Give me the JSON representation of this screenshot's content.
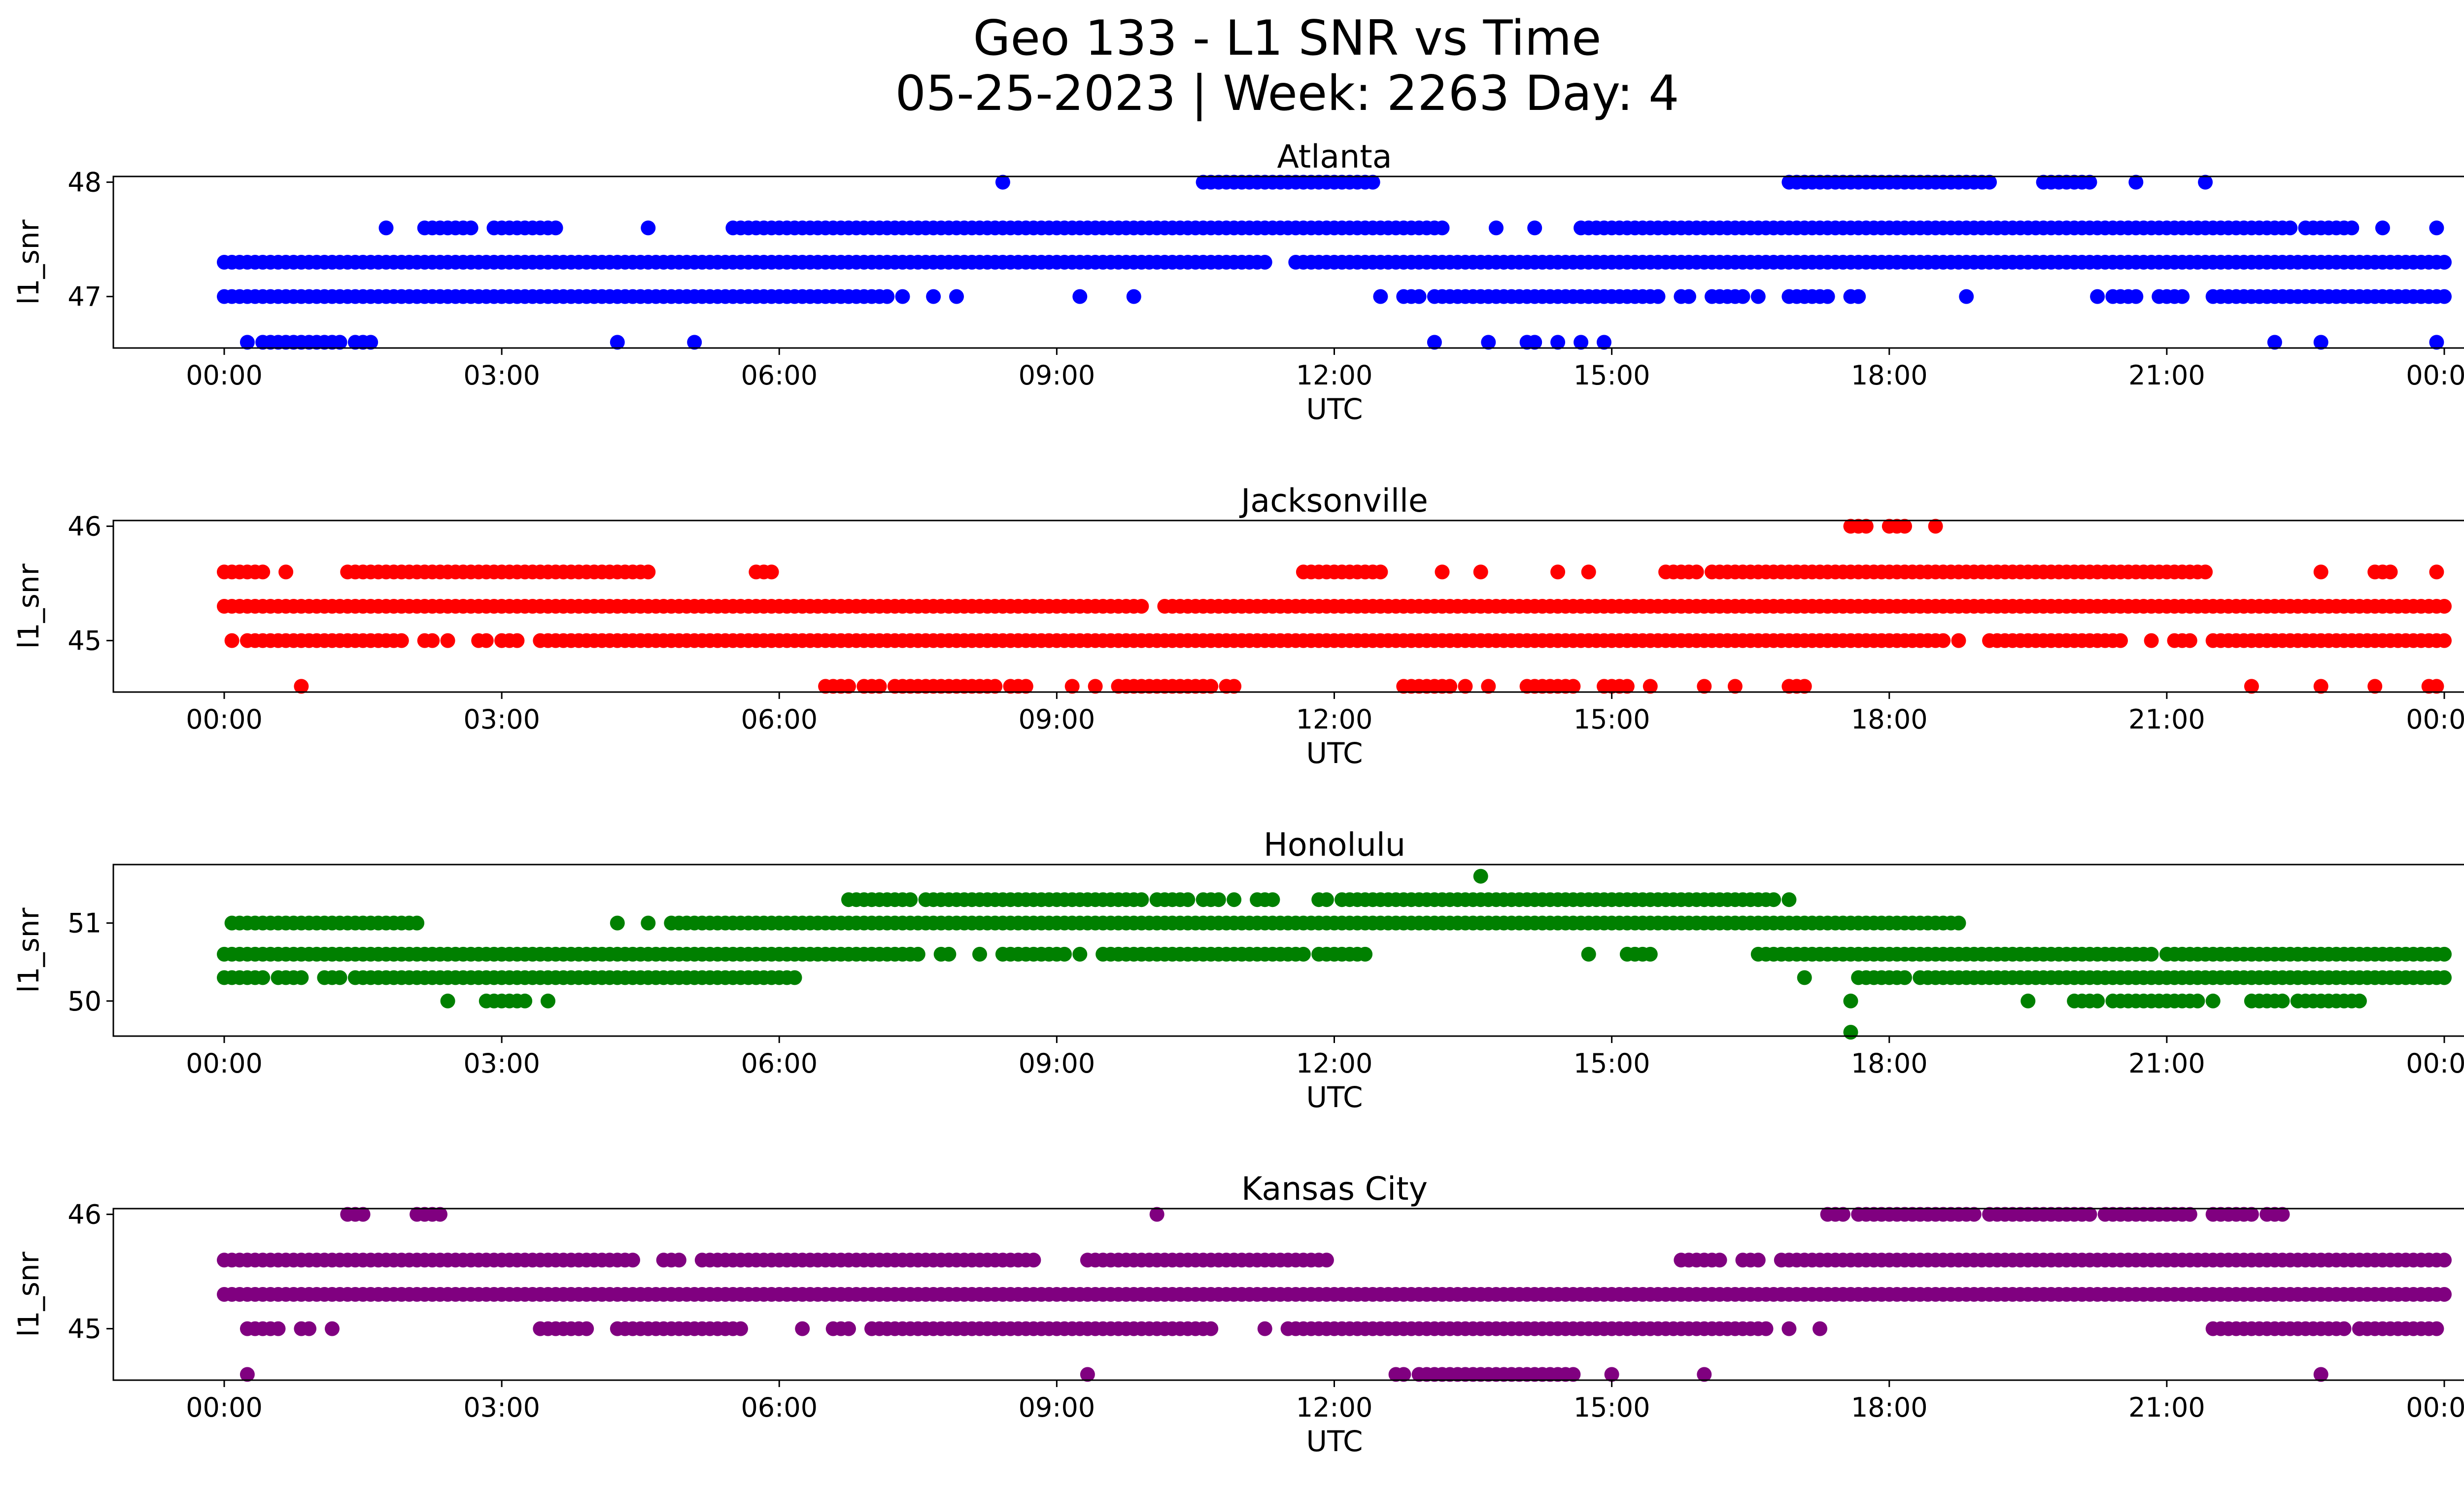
{
  "suptitle": [
    "Geo 133 - L1 SNR vs Time",
    "05-25-2023 | Week: 2263 Day: 4"
  ],
  "chart_data": [
    {
      "type": "scatter",
      "title": "Atlanta",
      "xlabel": "UTC",
      "ylabel": "l1_snr",
      "color": "#0000ff",
      "xlim": [
        "00:00",
        "00:00"
      ],
      "xticks": [
        "00:00",
        "03:00",
        "06:00",
        "09:00",
        "12:00",
        "15:00",
        "18:00",
        "21:00",
        "00:00"
      ],
      "ylim": [
        46.55,
        48.05
      ],
      "yticks": [
        47,
        48
      ],
      "levels": [
        {
          "y": 48.0,
          "runs": [
            [
              "08:25",
              "08:25"
            ],
            [
              "10:35",
              "12:25"
            ],
            [
              "16:55",
              "19:05"
            ],
            [
              "19:40",
              "20:10"
            ],
            [
              "20:40",
              "20:40"
            ],
            [
              "21:25",
              "21:25"
            ]
          ]
        },
        {
          "y": 47.6,
          "runs": [
            [
              "01:45",
              "01:45"
            ],
            [
              "02:10",
              "02:40"
            ],
            [
              "02:55",
              "03:35"
            ],
            [
              "04:35",
              "04:35"
            ],
            [
              "05:30",
              "12:55"
            ],
            [
              "13:00",
              "13:10"
            ],
            [
              "13:45",
              "13:45"
            ],
            [
              "14:10",
              "14:10"
            ],
            [
              "14:40",
              "22:20"
            ],
            [
              "22:30",
              "23:00"
            ],
            [
              "23:20",
              "23:20"
            ],
            [
              "23:55",
              "23:55"
            ]
          ]
        },
        {
          "y": 47.3,
          "runs": [
            [
              "00:00",
              "11:15"
            ],
            [
              "11:35",
              "24:00"
            ]
          ]
        },
        {
          "y": 47.0,
          "runs": [
            [
              "00:00",
              "07:10"
            ],
            [
              "07:20",
              "07:20"
            ],
            [
              "07:40",
              "07:40"
            ],
            [
              "07:55",
              "07:55"
            ],
            [
              "09:15",
              "09:15"
            ],
            [
              "09:50",
              "09:50"
            ],
            [
              "12:30",
              "12:30"
            ],
            [
              "12:45",
              "12:55"
            ],
            [
              "13:05",
              "15:30"
            ],
            [
              "15:45",
              "15:50"
            ],
            [
              "16:05",
              "16:25"
            ],
            [
              "16:35",
              "16:35"
            ],
            [
              "16:55",
              "17:20"
            ],
            [
              "17:35",
              "17:40"
            ],
            [
              "18:50",
              "18:50"
            ],
            [
              "20:15",
              "20:15"
            ],
            [
              "20:25",
              "20:40"
            ],
            [
              "20:55",
              "21:10"
            ],
            [
              "21:30",
              "24:00"
            ]
          ]
        },
        {
          "y": 46.6,
          "runs": [
            [
              "00:15",
              "00:15"
            ],
            [
              "00:25",
              "01:15"
            ],
            [
              "01:25",
              "01:35"
            ],
            [
              "04:15",
              "04:15"
            ],
            [
              "05:05",
              "05:05"
            ],
            [
              "13:05",
              "13:05"
            ],
            [
              "13:40",
              "13:40"
            ],
            [
              "14:05",
              "14:10"
            ],
            [
              "14:25",
              "14:25"
            ],
            [
              "14:40",
              "14:40"
            ],
            [
              "14:55",
              "14:55"
            ],
            [
              "22:10",
              "22:10"
            ],
            [
              "22:40",
              "22:40"
            ],
            [
              "23:55",
              "23:55"
            ]
          ]
        }
      ]
    },
    {
      "type": "scatter",
      "title": "Jacksonville",
      "xlabel": "UTC",
      "ylabel": "l1_snr",
      "color": "#ff0000",
      "xlim": [
        "00:00",
        "00:00"
      ],
      "xticks": [
        "00:00",
        "03:00",
        "06:00",
        "09:00",
        "12:00",
        "15:00",
        "18:00",
        "21:00",
        "00:00"
      ],
      "ylim": [
        44.55,
        46.05
      ],
      "yticks": [
        45,
        46
      ],
      "levels": [
        {
          "y": 46.0,
          "runs": [
            [
              "17:35",
              "17:45"
            ],
            [
              "18:00",
              "18:10"
            ],
            [
              "18:30",
              "18:30"
            ]
          ]
        },
        {
          "y": 45.6,
          "runs": [
            [
              "00:00",
              "00:25"
            ],
            [
              "00:40",
              "00:40"
            ],
            [
              "01:20",
              "04:35"
            ],
            [
              "05:45",
              "05:55"
            ],
            [
              "11:40",
              "12:30"
            ],
            [
              "13:10",
              "13:10"
            ],
            [
              "13:35",
              "13:35"
            ],
            [
              "14:25",
              "14:25"
            ],
            [
              "14:45",
              "14:45"
            ],
            [
              "15:35",
              "15:55"
            ],
            [
              "16:05",
              "21:25"
            ],
            [
              "22:40",
              "22:40"
            ],
            [
              "23:15",
              "23:25"
            ],
            [
              "23:55",
              "23:55"
            ]
          ]
        },
        {
          "y": 45.3,
          "runs": [
            [
              "00:00",
              "09:55"
            ],
            [
              "10:10",
              "24:00"
            ]
          ]
        },
        {
          "y": 45.0,
          "runs": [
            [
              "00:05",
              "00:05"
            ],
            [
              "00:15",
              "01:55"
            ],
            [
              "02:10",
              "02:15"
            ],
            [
              "02:25",
              "02:25"
            ],
            [
              "02:45",
              "02:50"
            ],
            [
              "03:00",
              "03:10"
            ],
            [
              "03:25",
              "18:35"
            ],
            [
              "18:45",
              "18:45"
            ],
            [
              "19:05",
              "20:30"
            ],
            [
              "20:50",
              "20:50"
            ],
            [
              "21:05",
              "21:15"
            ],
            [
              "21:30",
              "24:00"
            ]
          ]
        },
        {
          "y": 44.6,
          "runs": [
            [
              "00:50",
              "00:50"
            ],
            [
              "06:30",
              "06:45"
            ],
            [
              "06:55",
              "07:05"
            ],
            [
              "07:15",
              "08:20"
            ],
            [
              "08:30",
              "08:40"
            ],
            [
              "09:10",
              "09:10"
            ],
            [
              "09:25",
              "09:25"
            ],
            [
              "09:40",
              "10:40"
            ],
            [
              "10:50",
              "10:55"
            ],
            [
              "12:45",
              "13:15"
            ],
            [
              "13:25",
              "13:25"
            ],
            [
              "13:40",
              "13:40"
            ],
            [
              "14:05",
              "14:35"
            ],
            [
              "14:55",
              "15:10"
            ],
            [
              "15:25",
              "15:25"
            ],
            [
              "16:00",
              "16:00"
            ],
            [
              "16:20",
              "16:20"
            ],
            [
              "16:55",
              "17:05"
            ],
            [
              "21:55",
              "21:55"
            ],
            [
              "22:40",
              "22:40"
            ],
            [
              "23:15",
              "23:15"
            ],
            [
              "23:50",
              "23:55"
            ]
          ]
        }
      ]
    },
    {
      "type": "scatter",
      "title": "Honolulu",
      "xlabel": "UTC",
      "ylabel": "l1_snr",
      "color": "#008000",
      "xlim": [
        "00:00",
        "00:00"
      ],
      "xticks": [
        "00:00",
        "03:00",
        "06:00",
        "09:00",
        "12:00",
        "15:00",
        "18:00",
        "21:00",
        "00:00"
      ],
      "ylim": [
        49.55,
        51.75
      ],
      "yticks": [
        50,
        51
      ],
      "levels": [
        {
          "y": 51.6,
          "runs": [
            [
              "13:35",
              "13:35"
            ]
          ]
        },
        {
          "y": 51.3,
          "runs": [
            [
              "06:45",
              "07:25"
            ],
            [
              "07:35",
              "09:55"
            ],
            [
              "10:05",
              "10:25"
            ],
            [
              "10:35",
              "10:45"
            ],
            [
              "10:55",
              "10:55"
            ],
            [
              "11:10",
              "11:20"
            ],
            [
              "11:50",
              "11:55"
            ],
            [
              "12:05",
              "16:45"
            ],
            [
              "16:55",
              "16:55"
            ]
          ]
        },
        {
          "y": 51.0,
          "runs": [
            [
              "00:05",
              "02:05"
            ],
            [
              "04:15",
              "04:15"
            ],
            [
              "04:35",
              "04:35"
            ],
            [
              "04:50",
              "18:45"
            ]
          ]
        },
        {
          "y": 50.6,
          "runs": [
            [
              "00:00",
              "07:30"
            ],
            [
              "07:45",
              "07:50"
            ],
            [
              "08:10",
              "08:10"
            ],
            [
              "08:25",
              "09:05"
            ],
            [
              "09:15",
              "09:15"
            ],
            [
              "09:30",
              "11:40"
            ],
            [
              "11:50",
              "12:20"
            ],
            [
              "14:45",
              "14:45"
            ],
            [
              "15:10",
              "15:25"
            ],
            [
              "16:35",
              "20:50"
            ],
            [
              "21:00",
              "22:30"
            ],
            [
              "22:35",
              "24:00"
            ]
          ]
        },
        {
          "y": 50.3,
          "runs": [
            [
              "00:00",
              "00:25"
            ],
            [
              "00:35",
              "00:50"
            ],
            [
              "01:05",
              "01:15"
            ],
            [
              "01:25",
              "06:10"
            ],
            [
              "17:05",
              "17:05"
            ],
            [
              "17:40",
              "18:10"
            ],
            [
              "18:20",
              "24:00"
            ]
          ]
        },
        {
          "y": 50.0,
          "runs": [
            [
              "02:25",
              "02:25"
            ],
            [
              "02:50",
              "03:15"
            ],
            [
              "03:30",
              "03:30"
            ],
            [
              "17:35",
              "17:35"
            ],
            [
              "19:30",
              "19:30"
            ],
            [
              "20:00",
              "20:15"
            ],
            [
              "20:25",
              "21:20"
            ],
            [
              "21:30",
              "21:30"
            ],
            [
              "21:55",
              "22:15"
            ],
            [
              "22:25",
              "23:05"
            ]
          ]
        },
        {
          "y": 49.6,
          "runs": [
            [
              "17:35",
              "17:35"
            ]
          ]
        }
      ]
    },
    {
      "type": "scatter",
      "title": "Kansas City",
      "xlabel": "UTC",
      "ylabel": "l1_snr",
      "color": "#800080",
      "xlim": [
        "00:00",
        "00:00"
      ],
      "xticks": [
        "00:00",
        "03:00",
        "06:00",
        "09:00",
        "12:00",
        "15:00",
        "18:00",
        "21:00",
        "00:00"
      ],
      "ylim": [
        44.55,
        46.05
      ],
      "yticks": [
        45,
        46
      ],
      "levels": [
        {
          "y": 46.0,
          "runs": [
            [
              "01:20",
              "01:30"
            ],
            [
              "02:05",
              "02:20"
            ],
            [
              "10:05",
              "10:05"
            ],
            [
              "17:20",
              "17:30"
            ],
            [
              "17:40",
              "18:55"
            ],
            [
              "19:05",
              "20:10"
            ],
            [
              "20:20",
              "21:15"
            ],
            [
              "21:30",
              "21:55"
            ],
            [
              "22:05",
              "22:15"
            ]
          ]
        },
        {
          "y": 45.6,
          "runs": [
            [
              "00:00",
              "04:25"
            ],
            [
              "04:45",
              "04:55"
            ],
            [
              "05:10",
              "08:45"
            ],
            [
              "09:20",
              "11:55"
            ],
            [
              "15:45",
              "16:10"
            ],
            [
              "16:25",
              "16:35"
            ],
            [
              "16:50",
              "24:00"
            ]
          ]
        },
        {
          "y": 45.3,
          "runs": [
            [
              "00:00",
              "24:00"
            ]
          ]
        },
        {
          "y": 45.0,
          "runs": [
            [
              "00:15",
              "00:35"
            ],
            [
              "00:50",
              "00:55"
            ],
            [
              "01:10",
              "01:10"
            ],
            [
              "03:25",
              "03:55"
            ],
            [
              "04:15",
              "05:35"
            ],
            [
              "06:15",
              "06:15"
            ],
            [
              "06:35",
              "06:45"
            ],
            [
              "07:00",
              "10:40"
            ],
            [
              "11:15",
              "11:15"
            ],
            [
              "11:30",
              "16:40"
            ],
            [
              "16:55",
              "16:55"
            ],
            [
              "17:15",
              "17:15"
            ],
            [
              "21:30",
              "22:55"
            ],
            [
              "23:05",
              "23:55"
            ]
          ]
        },
        {
          "y": 44.6,
          "runs": [
            [
              "00:15",
              "00:15"
            ],
            [
              "09:20",
              "09:20"
            ],
            [
              "12:40",
              "12:45"
            ],
            [
              "12:55",
              "14:35"
            ],
            [
              "15:00",
              "15:00"
            ],
            [
              "16:00",
              "16:00"
            ],
            [
              "22:40",
              "22:40"
            ]
          ]
        }
      ]
    }
  ]
}
